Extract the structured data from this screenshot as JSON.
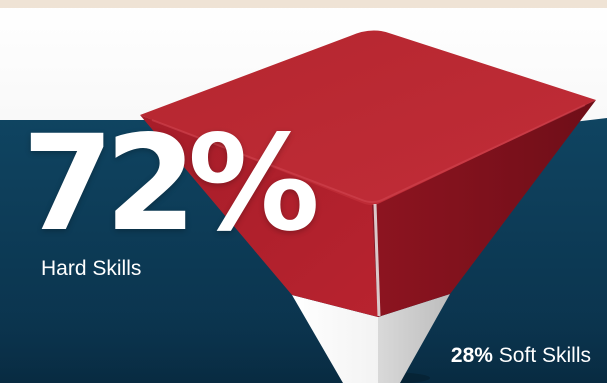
{
  "colors": {
    "background_top": "#f7f7f7",
    "background_bottom": "#0d3a55",
    "top_strip": "#efe3d5",
    "hard_skills": "#b2232f",
    "soft_skills": "#f4f4f4",
    "text": "#ffffff"
  },
  "chart_data": {
    "type": "pie",
    "title": "",
    "series": [
      {
        "name": "Hard Skills",
        "value": 72,
        "display": "72%"
      },
      {
        "name": "Soft Skills",
        "value": 28,
        "display": "28%"
      }
    ],
    "labels": {
      "hard_value": "72%",
      "hard_label": "Hard Skills",
      "soft_value": "28%",
      "soft_label": "Soft Skills"
    },
    "legend": "none",
    "grid": false
  }
}
